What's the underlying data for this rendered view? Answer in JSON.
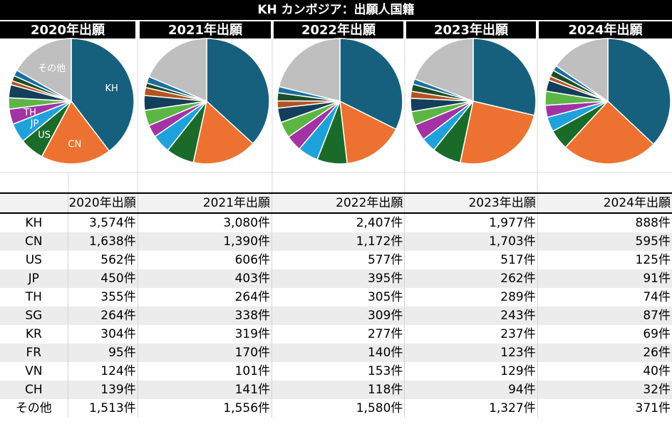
{
  "title": "KH カンボジア：出願人国籍",
  "years": [
    "2020年出願",
    "2021年出願",
    "2022年出願",
    "2023年出願",
    "2024年出願"
  ],
  "countries": [
    "KH",
    "CN",
    "US",
    "JP",
    "TH",
    "SG",
    "KR",
    "FR",
    "VN",
    "CH",
    "その他"
  ],
  "unit": "件",
  "colors": [
    "#17607d",
    "#ed7231",
    "#1a6b2a",
    "#1fa2dc",
    "#a233a4",
    "#5cb646",
    "#133f5a",
    "#b35422",
    "#1d4d26",
    "#1b6f9d",
    "#bfbfbf"
  ],
  "chart_data": {
    "type": "pie",
    "categories": [
      "KH",
      "CN",
      "US",
      "JP",
      "TH",
      "SG",
      "KR",
      "FR",
      "VN",
      "CH",
      "その他"
    ],
    "series": [
      {
        "name": "2020年出願",
        "values": [
          3574,
          1638,
          562,
          450,
          355,
          264,
          304,
          95,
          124,
          139,
          1513
        ]
      },
      {
        "name": "2021年出願",
        "values": [
          3080,
          1390,
          606,
          403,
          264,
          338,
          319,
          170,
          101,
          141,
          1556
        ]
      },
      {
        "name": "2022年出願",
        "values": [
          2407,
          1172,
          577,
          395,
          305,
          309,
          277,
          140,
          153,
          118,
          1580
        ]
      },
      {
        "name": "2023年出願",
        "values": [
          1977,
          1703,
          517,
          262,
          289,
          243,
          237,
          123,
          129,
          94,
          1327
        ]
      },
      {
        "name": "2024年出願",
        "values": [
          888,
          595,
          125,
          91,
          74,
          87,
          69,
          26,
          40,
          32,
          371
        ]
      }
    ],
    "slice_labels_first_chart": [
      "KH",
      "CN",
      "US",
      "JP",
      "TH",
      "その他"
    ]
  }
}
